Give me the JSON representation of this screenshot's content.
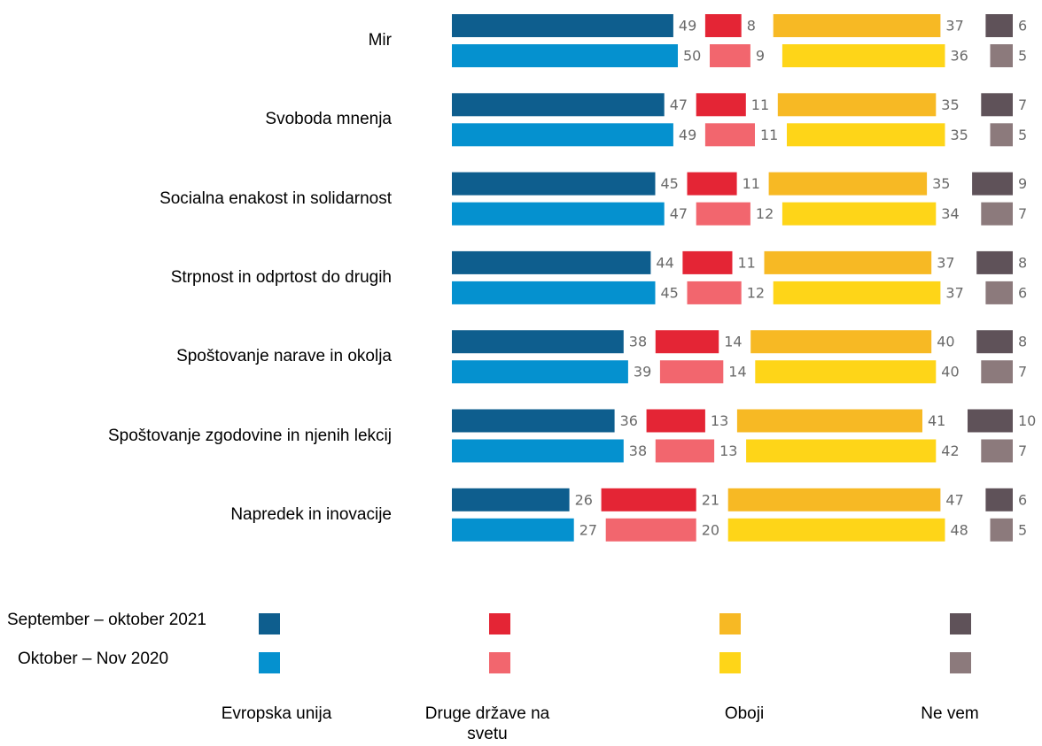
{
  "chart_data": {
    "type": "bar",
    "orientation": "horizontal",
    "categories": [
      "Mir",
      "Svoboda mnenja",
      "Socialna enakost in solidarnost",
      "Strpnost in odprtost do drugih",
      "Spoštovanje narave in okolja",
      "Spoštovanje zgodovine in njenih lekcij",
      "Napredek in inovacije"
    ],
    "segments": [
      "Evropska unija",
      "Druge države na svetu",
      "Oboji",
      "Ne vem"
    ],
    "series": [
      {
        "name": "September – oktober 2021",
        "colors": [
          "#0e5e8e",
          "#e42535",
          "#f7b924",
          "#5f5259"
        ],
        "values": [
          [
            49,
            8,
            37,
            6
          ],
          [
            47,
            11,
            35,
            7
          ],
          [
            45,
            11,
            35,
            9
          ],
          [
            44,
            11,
            37,
            8
          ],
          [
            38,
            14,
            40,
            8
          ],
          [
            36,
            13,
            41,
            10
          ],
          [
            26,
            21,
            47,
            6
          ]
        ]
      },
      {
        "name": "Oktober – Nov 2020",
        "colors": [
          "#0591cf",
          "#f2666e",
          "#fed518",
          "#8c7a7c"
        ],
        "values": [
          [
            50,
            9,
            36,
            5
          ],
          [
            49,
            11,
            35,
            5
          ],
          [
            47,
            12,
            34,
            7
          ],
          [
            45,
            12,
            37,
            6
          ],
          [
            39,
            14,
            40,
            7
          ],
          [
            38,
            13,
            42,
            7
          ],
          [
            27,
            20,
            48,
            5
          ]
        ]
      }
    ]
  }
}
